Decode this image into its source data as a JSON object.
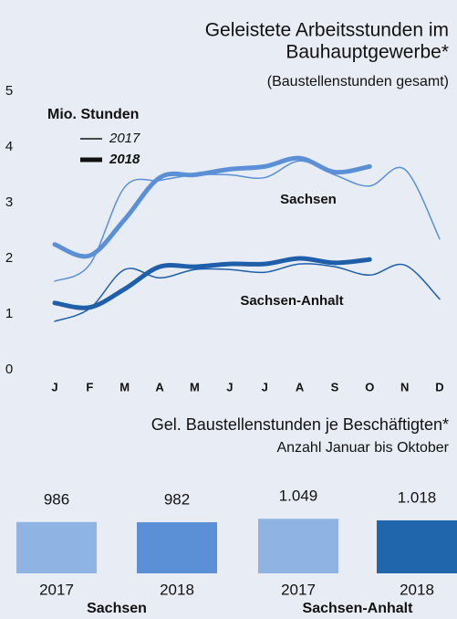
{
  "chart_data": [
    {
      "type": "line",
      "title": [
        "Geleistete Arbeitsstunden im",
        "Bauhauptgewerbe*"
      ],
      "subtitle": "(Baustellenstunden gesamt)",
      "legend_title": "Mio. Stunden",
      "categories": [
        "J",
        "F",
        "M",
        "A",
        "M",
        "J",
        "J",
        "A",
        "S",
        "O",
        "N",
        "D"
      ],
      "ylim": [
        0,
        5
      ],
      "yticks": [
        0,
        1,
        2,
        3,
        4,
        5
      ],
      "series": [
        {
          "name": "2017",
          "color": "#5b8fd6",
          "width": 1.5,
          "values": [
            1.59,
            1.89,
            3.28,
            3.4,
            3.5,
            3.5,
            3.45,
            3.75,
            3.5,
            3.3,
            3.6,
            2.35
          ]
        },
        {
          "name": "2018",
          "color": "#5b8fd6",
          "width": 5,
          "values": [
            2.25,
            2.05,
            2.7,
            3.45,
            3.5,
            3.6,
            3.65,
            3.8,
            3.55,
            3.65,
            null,
            null
          ]
        },
        {
          "color": "#1f5ea8",
          "width": 1.5,
          "values": [
            0.87,
            1.1,
            1.8,
            1.65,
            1.8,
            1.8,
            1.75,
            1.9,
            1.85,
            1.7,
            1.88,
            1.27
          ]
        },
        {
          "color": "#1f5ea8",
          "width": 5,
          "values": [
            1.2,
            1.12,
            1.45,
            1.85,
            1.85,
            1.9,
            1.9,
            2.0,
            1.92,
            1.98,
            null,
            null
          ]
        }
      ],
      "annotations": [
        {
          "text": "Sachsen",
          "color": "#5b8fd6"
        },
        {
          "text": "Sachsen-Anhalt",
          "color": "#1f5ea8"
        }
      ]
    },
    {
      "type": "bar",
      "title": "Gel. Baustellenstunden je Beschäftigten*",
      "subtitle": "Anzahl Januar bis Oktober",
      "categories": [
        "2017",
        "2018",
        "2017",
        "2018"
      ],
      "values": [
        986,
        982,
        1049,
        1018
      ],
      "value_labels": [
        "986",
        "982",
        "1.049",
        "1.018"
      ],
      "colors": [
        "#8fb4e3",
        "#5b8fd6",
        "#8fb4e3",
        "#1f66ad"
      ],
      "groups": [
        {
          "name": "Sachsen",
          "color": "#3a72c0"
        },
        {
          "name": "Sachsen-Anhalt",
          "color": "#3a72c0"
        }
      ]
    }
  ]
}
